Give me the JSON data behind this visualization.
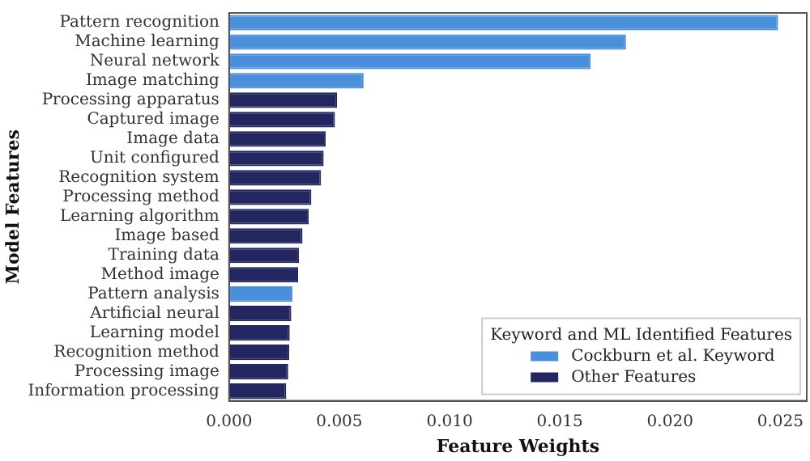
{
  "chart_data": {
    "type": "bar",
    "orientation": "horizontal",
    "xlabel": "Feature Weights",
    "ylabel": "Model Features",
    "categories": [
      "Pattern recognition",
      "Machine learning",
      "Neural network",
      "Image matching",
      "Processing apparatus",
      "Captured image",
      "Image data",
      "Unit configured",
      "Recognition system",
      "Processing method",
      "Learning algorithm",
      "Image based",
      "Training data",
      "Method image",
      "Pattern analysis",
      "Artificial neural",
      "Learning model",
      "Recognition method",
      "Processing image",
      "Information processing"
    ],
    "series": [
      {
        "name": "Cockburn et al. Keyword",
        "color": "#4a8fdb",
        "values": [
          0.0249,
          0.018,
          0.0164,
          0.0061,
          null,
          null,
          null,
          null,
          null,
          null,
          null,
          null,
          null,
          null,
          0.00287,
          null,
          null,
          null,
          null,
          null
        ]
      },
      {
        "name": "Other Features",
        "color": "#23275f",
        "values": [
          null,
          null,
          null,
          null,
          0.0049,
          0.0048,
          0.00438,
          0.00429,
          0.00417,
          0.00373,
          0.00361,
          0.00333,
          0.00317,
          0.00313,
          null,
          0.00282,
          0.00275,
          0.00273,
          0.00268,
          0.00259
        ]
      }
    ],
    "xlim": [
      0,
      0.0262
    ],
    "xticks": [
      {
        "value": 0,
        "label": "0.000"
      },
      0.005,
      {
        "value": 0.01,
        "label": "0.010"
      },
      0.015,
      {
        "value": 0.02,
        "label": "0.020"
      },
      0.025
    ],
    "legend": "bottom right",
    "legend_title": "Keyword and ML Identified Features",
    "grid": false
  }
}
